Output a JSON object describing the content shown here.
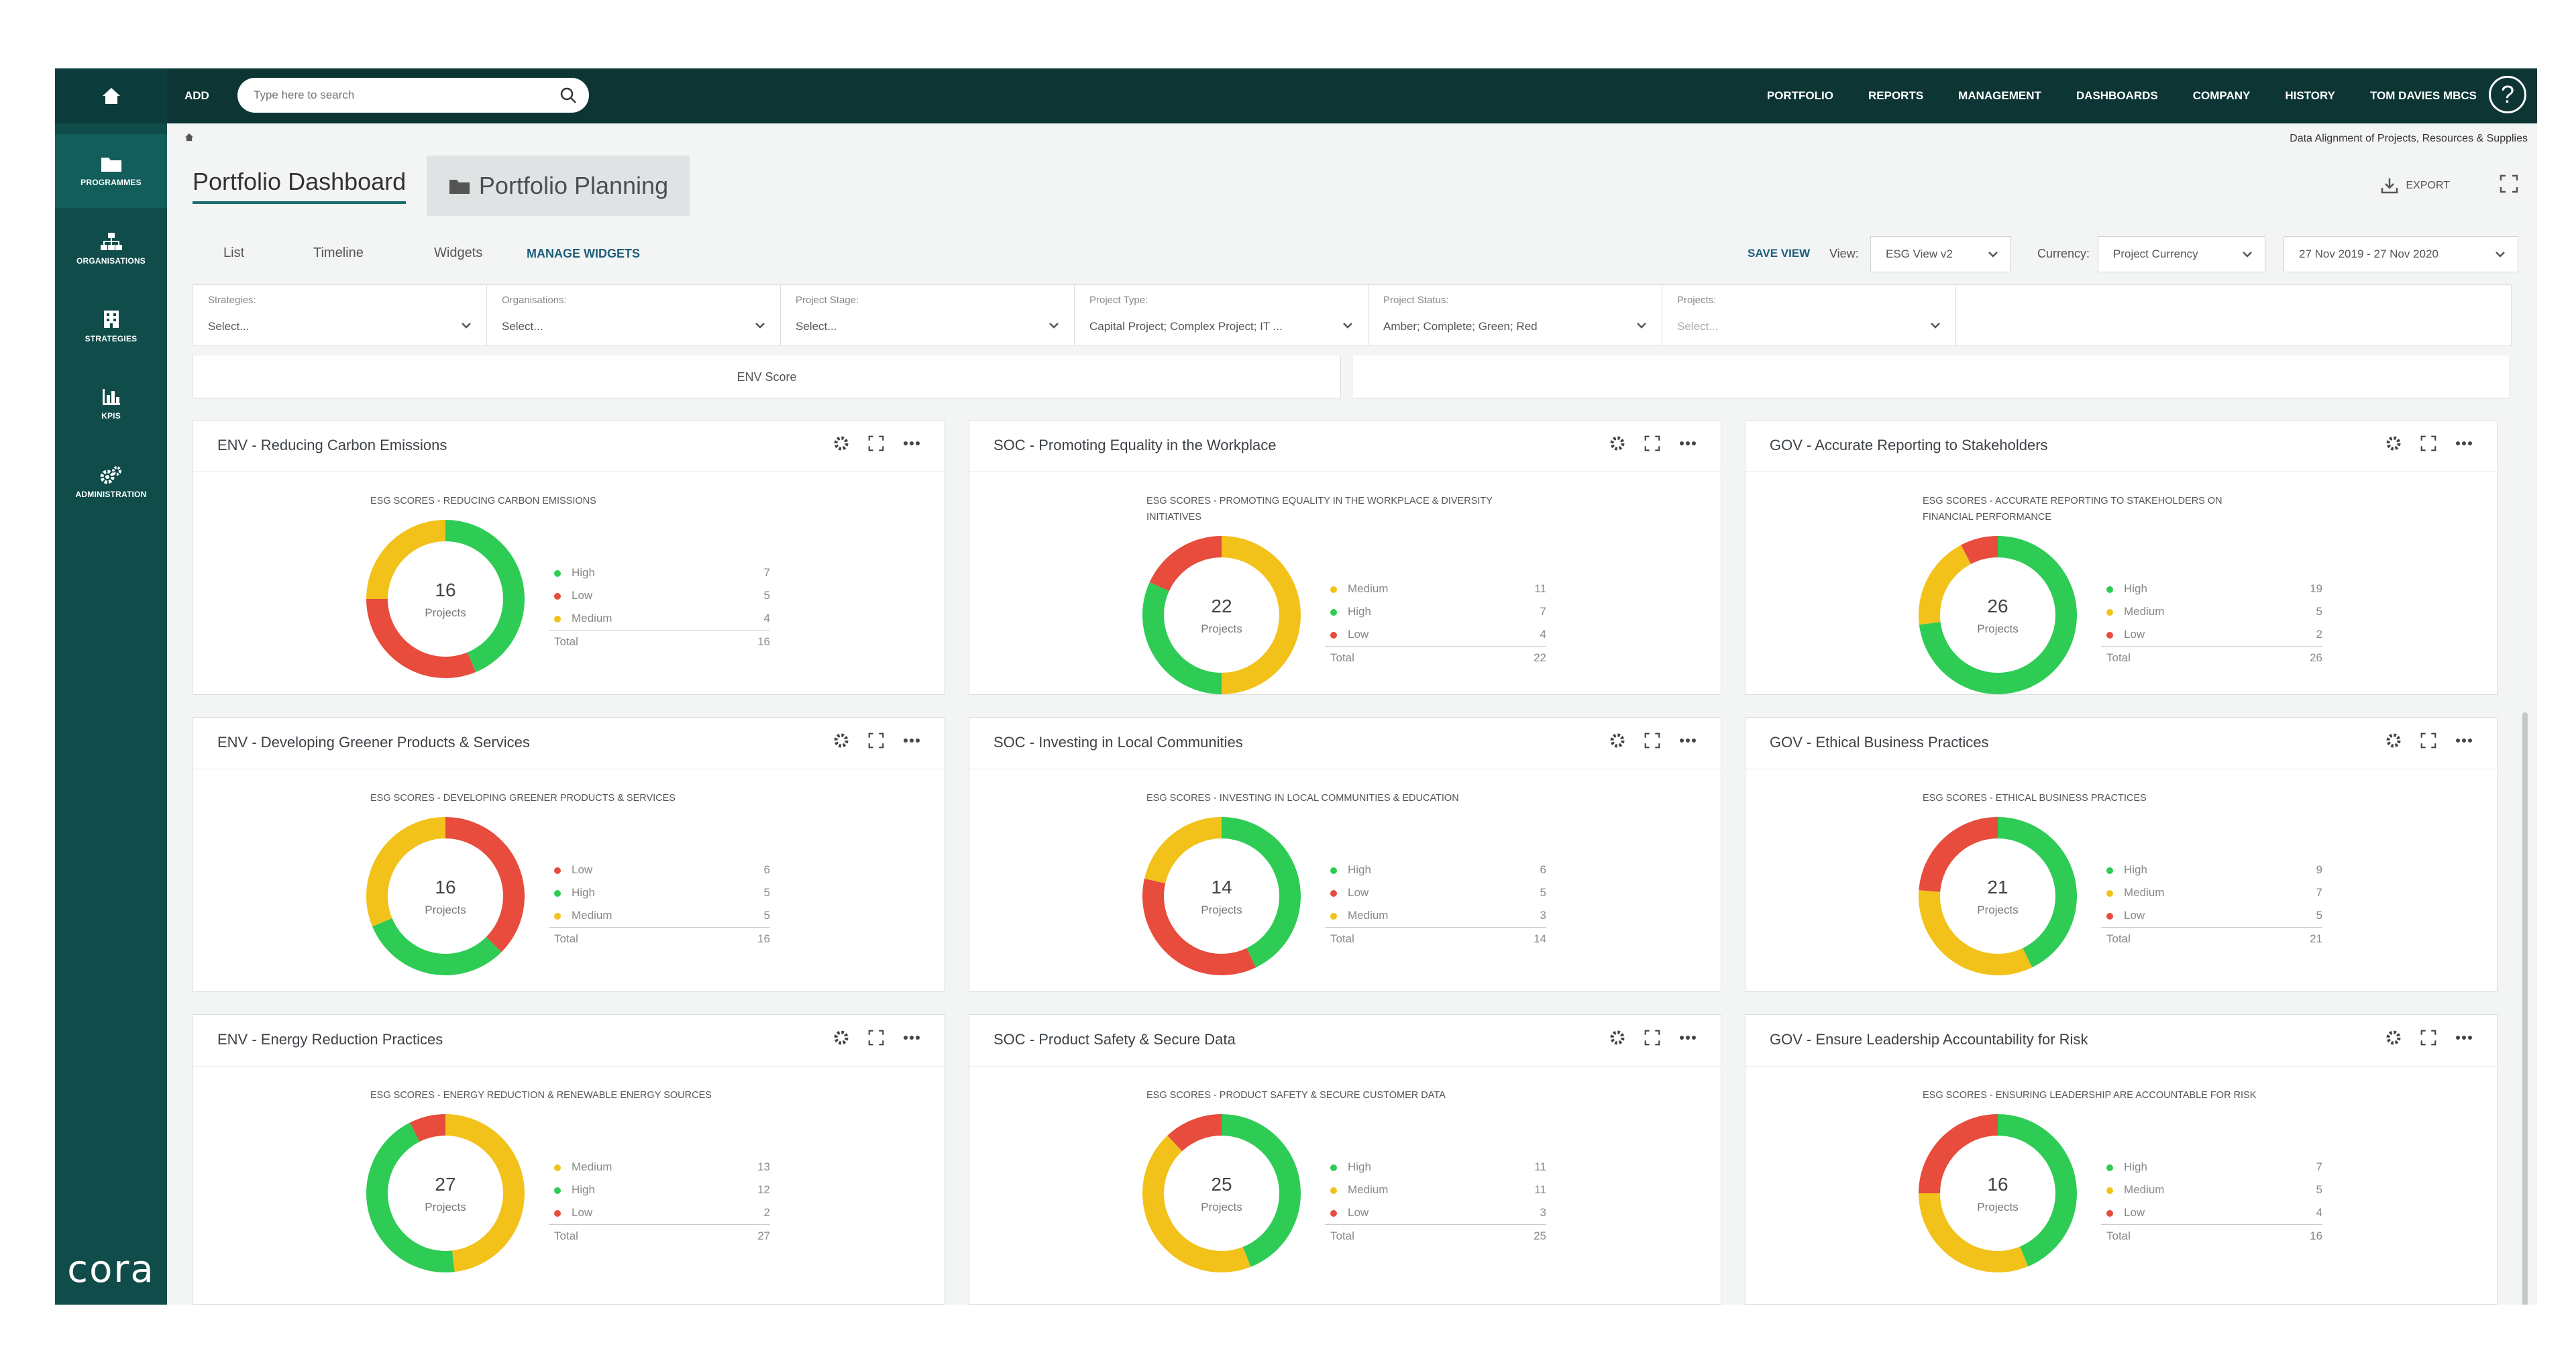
{
  "colors": {
    "high": "#2ecc55",
    "medium": "#f2c21a",
    "low": "#e74c3c",
    "sidebar": "#0f4c4a",
    "topbar": "#0c3534"
  },
  "sidebar": {
    "items": [
      {
        "label": "PROGRAMMES",
        "icon": "folder-icon"
      },
      {
        "label": "ORGANISATIONS",
        "icon": "org-chart-icon"
      },
      {
        "label": "STRATEGIES",
        "icon": "building-icon"
      },
      {
        "label": "KPIS",
        "icon": "bar-chart-icon"
      },
      {
        "label": "ADMINISTRATION",
        "icon": "gears-icon"
      }
    ],
    "logo": "cora"
  },
  "topbar": {
    "add": "ADD",
    "search_placeholder": "Type here to search",
    "nav": [
      "PORTFOLIO",
      "REPORTS",
      "MANAGEMENT",
      "DASHBOARDS",
      "COMPANY",
      "HISTORY",
      "TOM DAVIES MBCS"
    ],
    "help": "?"
  },
  "header": {
    "subtitle": "Data Alignment of Projects, Resources & Supplies",
    "tab_dashboard": "Portfolio Dashboard",
    "tab_planning": "Portfolio Planning",
    "export": "EXPORT"
  },
  "subtabs": {
    "list": "List",
    "timeline": "Timeline",
    "widgets": "Widgets",
    "manage": "MANAGE WIDGETS"
  },
  "viewbar": {
    "save_view": "SAVE VIEW",
    "view_label": "View:",
    "view_value": "ESG View v2",
    "currency_label": "Currency:",
    "currency_value": "Project Currency",
    "date_range": "27 Nov 2019 - 27 Nov 2020"
  },
  "filters": [
    {
      "label": "Strategies:",
      "value": "Select..."
    },
    {
      "label": "Organisations:",
      "value": "Select..."
    },
    {
      "label": "Project Stage:",
      "value": "Select..."
    },
    {
      "label": "Project Type:",
      "value": "Capital Project; Complex Project; IT ..."
    },
    {
      "label": "Project Status:",
      "value": "Amber; Complete; Green; Red"
    },
    {
      "label": "Projects:",
      "value": "Select..."
    }
  ],
  "score_row": {
    "left": "ENV Score",
    "right": ""
  },
  "widgets": [
    {
      "title": "ENV - Reducing Carbon Emissions",
      "chart_title": "ESG SCORES - REDUCING CARBON EMISSIONS",
      "total": 16,
      "center_label": "Projects",
      "legend": [
        {
          "name": "High",
          "value": 7
        },
        {
          "name": "Low",
          "value": 5
        },
        {
          "name": "Medium",
          "value": 4
        }
      ],
      "total_label": "Total"
    },
    {
      "title": "SOC - Promoting Equality in the Workplace",
      "chart_title": "ESG SCORES - PROMOTING EQUALITY IN THE WORKPLACE & DIVERSITY INITIATIVES",
      "total": 22,
      "center_label": "Projects",
      "legend": [
        {
          "name": "Medium",
          "value": 11
        },
        {
          "name": "High",
          "value": 7
        },
        {
          "name": "Low",
          "value": 4
        }
      ],
      "total_label": "Total"
    },
    {
      "title": "GOV - Accurate Reporting to Stakeholders",
      "chart_title": "ESG SCORES - ACCURATE REPORTING TO STAKEHOLDERS ON FINANCIAL PERFORMANCE",
      "total": 26,
      "center_label": "Projects",
      "legend": [
        {
          "name": "High",
          "value": 19
        },
        {
          "name": "Medium",
          "value": 5
        },
        {
          "name": "Low",
          "value": 2
        }
      ],
      "total_label": "Total"
    },
    {
      "title": "ENV - Developing Greener Products & Services",
      "chart_title": "ESG SCORES - DEVELOPING GREENER PRODUCTS & SERVICES",
      "total": 16,
      "center_label": "Projects",
      "legend": [
        {
          "name": "Low",
          "value": 6
        },
        {
          "name": "High",
          "value": 5
        },
        {
          "name": "Medium",
          "value": 5
        }
      ],
      "total_label": "Total"
    },
    {
      "title": "SOC - Investing in Local Communities",
      "chart_title": "ESG SCORES - INVESTING IN LOCAL COMMUNITIES & EDUCATION",
      "total": 14,
      "center_label": "Projects",
      "legend": [
        {
          "name": "High",
          "value": 6
        },
        {
          "name": "Low",
          "value": 5
        },
        {
          "name": "Medium",
          "value": 3
        }
      ],
      "total_label": "Total"
    },
    {
      "title": "GOV - Ethical Business Practices",
      "chart_title": "ESG SCORES - ETHICAL BUSINESS PRACTICES",
      "total": 21,
      "center_label": "Projects",
      "legend": [
        {
          "name": "High",
          "value": 9
        },
        {
          "name": "Medium",
          "value": 7
        },
        {
          "name": "Low",
          "value": 5
        }
      ],
      "total_label": "Total"
    },
    {
      "title": "ENV - Energy Reduction Practices",
      "chart_title": "ESG SCORES - ENERGY REDUCTION & RENEWABLE ENERGY SOURCES",
      "total": 27,
      "center_label": "Projects",
      "legend": [
        {
          "name": "Medium",
          "value": 13
        },
        {
          "name": "High",
          "value": 12
        },
        {
          "name": "Low",
          "value": 2
        }
      ],
      "total_label": "Total"
    },
    {
      "title": "SOC - Product Safety & Secure Data",
      "chart_title": "ESG SCORES - PRODUCT SAFETY & SECURE CUSTOMER DATA",
      "total": 25,
      "center_label": "Projects",
      "legend": [
        {
          "name": "High",
          "value": 11
        },
        {
          "name": "Medium",
          "value": 11
        },
        {
          "name": "Low",
          "value": 3
        }
      ],
      "total_label": "Total"
    },
    {
      "title": "GOV - Ensure Leadership Accountability for Risk",
      "chart_title": "ESG SCORES - ENSURING LEADERSHIP ARE ACCOUNTABLE FOR RISK",
      "total": 16,
      "center_label": "Projects",
      "legend": [
        {
          "name": "High",
          "value": 7
        },
        {
          "name": "Medium",
          "value": 5
        },
        {
          "name": "Low",
          "value": 4
        }
      ],
      "total_label": "Total"
    }
  ]
}
